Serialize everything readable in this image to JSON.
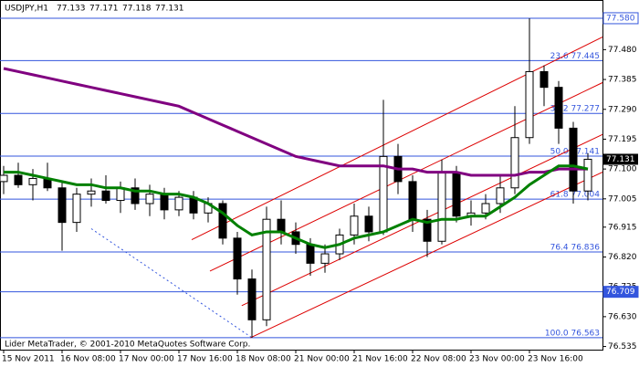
{
  "chart_data": {
    "type": "candlestick",
    "title": "USDJPY,H1",
    "last_bar": [
      77.133,
      77.171,
      77.118,
      77.131
    ],
    "footer": "Lider MetaTrader, © 2001-2010 MetaQuotes Software Corp.",
    "categories": [
      "15 Nov 2011",
      null,
      null,
      null,
      "16 Nov 08:00",
      null,
      null,
      null,
      "17 Nov 00:00",
      null,
      null,
      null,
      "17 Nov 16:00",
      null,
      null,
      null,
      "18 Nov 08:00",
      null,
      null,
      null,
      "21 Nov 00:00",
      null,
      null,
      null,
      "21 Nov 16:00",
      null,
      null,
      null,
      "22 Nov 08:00",
      null,
      null,
      null,
      "23 Nov 00:00",
      null,
      null,
      null,
      "23 Nov 16:00",
      null,
      null,
      null,
      null
    ],
    "open": [
      77.06,
      77.08,
      77.05,
      77.07,
      77.04,
      76.93,
      77.02,
      77.03,
      77.0,
      77.04,
      76.99,
      77.02,
      76.97,
      77.01,
      76.96,
      76.99,
      76.88,
      76.75,
      76.62,
      76.94,
      76.9,
      76.86,
      76.8,
      76.83,
      76.89,
      76.95,
      76.9,
      77.14,
      77.06,
      76.94,
      76.87,
      77.09,
      76.95,
      76.96,
      76.99,
      77.04,
      77.2,
      77.41,
      77.36,
      77.23,
      77.03
    ],
    "high": [
      77.11,
      77.12,
      77.1,
      77.12,
      77.06,
      77.04,
      77.07,
      77.08,
      77.06,
      77.07,
      77.05,
      77.04,
      77.03,
      77.03,
      77.01,
      77.0,
      76.9,
      76.78,
      76.98,
      77.0,
      76.93,
      76.88,
      76.86,
      76.91,
      76.99,
      76.98,
      77.32,
      77.18,
      77.08,
      76.97,
      77.13,
      77.11,
      77.0,
      77.02,
      77.08,
      77.3,
      77.58,
      77.43,
      77.38,
      77.25,
      77.15
    ],
    "low": [
      77.02,
      77.04,
      77.0,
      77.03,
      76.84,
      76.9,
      76.98,
      76.99,
      76.96,
      76.97,
      76.95,
      76.94,
      76.95,
      76.94,
      76.93,
      76.86,
      76.7,
      76.563,
      76.6,
      76.86,
      76.83,
      76.76,
      76.77,
      76.81,
      76.86,
      76.87,
      76.89,
      77.02,
      76.9,
      76.82,
      76.86,
      76.93,
      76.92,
      76.94,
      76.96,
      77.02,
      77.18,
      77.3,
      77.18,
      76.99,
      77.0
    ],
    "close": [
      77.08,
      77.05,
      77.07,
      77.04,
      76.93,
      77.02,
      77.03,
      77.0,
      77.04,
      76.99,
      77.02,
      76.97,
      77.01,
      76.96,
      76.99,
      76.88,
      76.75,
      76.62,
      76.94,
      76.9,
      76.86,
      76.8,
      76.83,
      76.89,
      76.95,
      76.9,
      77.14,
      77.06,
      76.94,
      76.87,
      77.09,
      76.95,
      76.96,
      76.99,
      77.04,
      77.2,
      77.41,
      77.36,
      77.23,
      77.03,
      77.131
    ],
    "lines": [
      {
        "color": "#800080",
        "values": [
          77.42,
          77.41,
          77.4,
          77.39,
          77.38,
          77.37,
          77.36,
          77.35,
          77.34,
          77.33,
          77.32,
          77.31,
          77.3,
          77.28,
          77.26,
          77.24,
          77.22,
          77.2,
          77.18,
          77.16,
          77.14,
          77.13,
          77.12,
          77.11,
          77.11,
          77.11,
          77.11,
          77.1,
          77.1,
          77.09,
          77.09,
          77.09,
          77.08,
          77.08,
          77.08,
          77.08,
          77.09,
          77.09,
          77.1,
          77.1,
          77.1
        ]
      },
      {
        "color": "#008000",
        "values": [
          77.09,
          77.09,
          77.08,
          77.07,
          77.06,
          77.05,
          77.05,
          77.04,
          77.04,
          77.03,
          77.03,
          77.02,
          77.02,
          77.01,
          76.99,
          76.96,
          76.92,
          76.89,
          76.9,
          76.9,
          76.88,
          76.86,
          76.85,
          76.86,
          76.88,
          76.89,
          76.9,
          76.92,
          76.94,
          76.93,
          76.94,
          76.94,
          76.95,
          76.95,
          76.98,
          77.01,
          77.05,
          77.08,
          77.11,
          77.11,
          77.1
        ]
      }
    ],
    "fib_color": "#3355dd",
    "fib_levels": [
      {
        "value": 77.445,
        "label": "23.6 77.445"
      },
      {
        "value": 77.277,
        "label": "38.2 77.277"
      },
      {
        "value": 77.141,
        "label": "50.0 77.141"
      },
      {
        "value": 77.004,
        "label": "61.8 77.004"
      },
      {
        "value": 76.836,
        "label": "76.4 76.836"
      },
      {
        "value": 76.563,
        "label": "100.0 76.563"
      }
    ],
    "fib_base": {
      "x": [
        6,
        17
      ],
      "y": [
        76.91,
        76.563
      ]
    },
    "channel_color": "#dd0000",
    "channel": [
      {
        "x": [
          12.875,
          41
        ],
        "y": [
          76.875,
          77.52
        ]
      },
      {
        "x": [
          14.125,
          41
        ],
        "y": [
          76.775,
          77.375
        ]
      },
      {
        "x": [
          16.3,
          41
        ],
        "y": [
          76.665,
          77.21
        ]
      },
      {
        "x": [
          16.9,
          41
        ],
        "y": [
          76.563,
          77.09
        ]
      }
    ],
    "hlines": [
      {
        "value": 77.58,
        "label": "77.580"
      },
      {
        "value": 76.709,
        "label": "76.709"
      }
    ],
    "current": {
      "value": 77.131,
      "label": "77.131"
    },
    "ylim": [
      76.525,
      77.638
    ],
    "yticks": [
      {
        "value": 77.48,
        "label": "77.480"
      },
      {
        "value": 77.385,
        "label": "77.385"
      },
      {
        "value": 77.29,
        "label": "77.290"
      },
      {
        "value": 77.195,
        "label": "77.195"
      },
      {
        "value": 77.1,
        "label": "77.100"
      },
      {
        "value": 77.005,
        "label": "77.005"
      },
      {
        "value": 76.915,
        "label": "76.915"
      },
      {
        "value": 76.82,
        "label": "76.820"
      },
      {
        "value": 76.725,
        "label": "76.725"
      },
      {
        "value": 76.63,
        "label": "76.630"
      },
      {
        "value": 76.535,
        "label": "76.535"
      }
    ]
  }
}
